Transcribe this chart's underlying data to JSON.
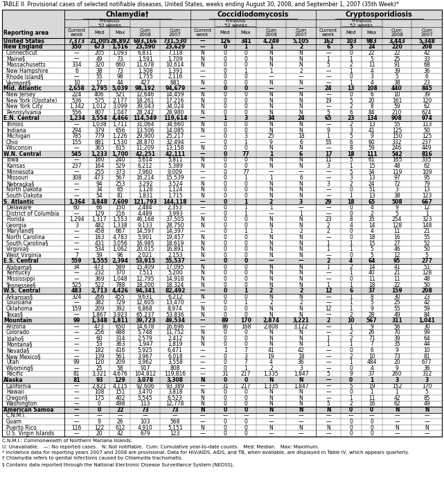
{
  "title": "TABLE II. Provisional cases of selected notifiable diseases, United States, weeks ending August 30, 2008, and September 1, 2007 (35th Week)*",
  "col_groups": [
    "Chlamydia†",
    "Coccidiodomycosis",
    "Cryptosporidiosis"
  ],
  "row_label": "Reporting area",
  "footnotes": [
    "C.N.M.I.: Commonwealth of Northern Mariana Islands.",
    "U: Unavailable.   —: No reported cases.   N: Not notifiable.  Cum: Cumulative year-to-date counts.   Med: Median.   Max: Maximum.",
    "* Incidence data for reporting years 2007 and 2008 are provisional. Data for HIV/AIDS, AIDS, and TB, when available, are displayed in Table IV, which appears quarterly.",
    "† Chlamydia refers to genital infections caused by Chlamydia trachomatis.",
    "§ Contains data reported through the National Electronic Disease Surveillance System (NEDSS)."
  ],
  "rows": [
    [
      "United States",
      "7,373",
      "21,005",
      "28,892",
      "693,166",
      "731,530",
      "—",
      "126",
      "341",
      "4,249",
      "5,105",
      "162",
      "103",
      "983",
      "3,443",
      "5,348"
    ],
    [
      "New England",
      "350",
      "673",
      "1,516",
      "23,590",
      "23,629",
      "—",
      "0",
      "1",
      "1",
      "2",
      "6",
      "5",
      "24",
      "220",
      "208"
    ],
    [
      "Connecticut",
      "—",
      "205",
      "1,093",
      "6,831",
      "7,118",
      "N",
      "0",
      "0",
      "N",
      "N",
      "—",
      "0",
      "22",
      "22",
      "42"
    ],
    [
      "Maine§",
      "—",
      "49",
      "73",
      "1,591",
      "1,709",
      "N",
      "0",
      "0",
      "N",
      "N",
      "1",
      "1",
      "5",
      "25",
      "33"
    ],
    [
      "Massachusetts",
      "334",
      "320",
      "660",
      "11,678",
      "10,614",
      "N",
      "0",
      "0",
      "N",
      "N",
      "5",
      "2",
      "11",
      "91",
      "68"
    ],
    [
      "New Hampshire",
      "6",
      "38",
      "73",
      "1,308",
      "1,391",
      "—",
      "0",
      "1",
      "1",
      "2",
      "—",
      "1",
      "4",
      "39",
      "36"
    ],
    [
      "Rhode Island§",
      "—",
      "55",
      "98",
      "1,755",
      "2,116",
      "—",
      "0",
      "0",
      "—",
      "—",
      "—",
      "0",
      "3",
      "5",
      "6"
    ],
    [
      "Vermont§",
      "10",
      "17",
      "44",
      "427",
      "681",
      "N",
      "0",
      "0",
      "N",
      "N",
      "—",
      "1",
      "4",
      "38",
      "23"
    ],
    [
      "Mid. Atlantic",
      "2,658",
      "2,795",
      "5,039",
      "98,192",
      "94,679",
      "—",
      "0",
      "0",
      "—",
      "—",
      "24",
      "13",
      "108",
      "440",
      "845"
    ],
    [
      "New Jersey",
      "224",
      "406",
      "521",
      "12,646",
      "14,459",
      "N",
      "0",
      "0",
      "N",
      "N",
      "—",
      "0",
      "6",
      "10",
      "39"
    ],
    [
      "New York (Upstate)",
      "536",
      "575",
      "2,177",
      "18,261",
      "17,216",
      "N",
      "0",
      "0",
      "N",
      "N",
      "19",
      "5",
      "20",
      "161",
      "120"
    ],
    [
      "New York City",
      "1,342",
      "1,012",
      "3,099",
      "39,043",
      "34,024",
      "N",
      "0",
      "0",
      "N",
      "N",
      "—",
      "2",
      "8",
      "59",
      "62"
    ],
    [
      "Pennsylvania",
      "556",
      "807",
      "1,047",
      "28,242",
      "28,980",
      "N",
      "0",
      "0",
      "N",
      "N",
      "5",
      "6",
      "84",
      "210",
      "624"
    ],
    [
      "E.N. Central",
      "1,234",
      "3,554",
      "4,466",
      "114,549",
      "119,614",
      "—",
      "1",
      "3",
      "34",
      "24",
      "65",
      "23",
      "134",
      "908",
      "974"
    ],
    [
      "Illinois",
      "—",
      "1,038",
      "1,711",
      "31,064",
      "34,660",
      "N",
      "0",
      "0",
      "N",
      "N",
      "—",
      "2",
      "13",
      "55",
      "113"
    ],
    [
      "Indiana",
      "294",
      "379",
      "656",
      "13,506",
      "14,085",
      "N",
      "0",
      "0",
      "N",
      "N",
      "9",
      "3",
      "41",
      "125",
      "50"
    ],
    [
      "Michigan",
      "785",
      "779",
      "1,226",
      "29,900",
      "25,217",
      "—",
      "0",
      "3",
      "25",
      "18",
      "1",
      "5",
      "9",
      "150",
      "125"
    ],
    [
      "Ohio",
      "155",
      "881",
      "1,530",
      "28,870",
      "32,494",
      "—",
      "0",
      "1",
      "9",
      "6",
      "55",
      "6",
      "60",
      "332",
      "237"
    ],
    [
      "Wisconsin",
      "—",
      "365",
      "615",
      "11,209",
      "13,158",
      "N",
      "0",
      "0",
      "N",
      "N",
      "—",
      "8",
      "59",
      "246",
      "449"
    ],
    [
      "W.N. Central",
      "545",
      "1,233",
      "1,700",
      "42,251",
      "42,111",
      "—",
      "0",
      "77",
      "1",
      "6",
      "17",
      "18",
      "111",
      "542",
      "816"
    ],
    [
      "Iowa",
      "—",
      "160",
      "240",
      "5,614",
      "5,811",
      "N",
      "0",
      "0",
      "N",
      "N",
      "11",
      "5",
      "61",
      "165",
      "335"
    ],
    [
      "Kansas",
      "237",
      "164",
      "529",
      "6,212",
      "5,389",
      "N",
      "0",
      "0",
      "N",
      "N",
      "3",
      "1",
      "15",
      "48",
      "62"
    ],
    [
      "Minnesota",
      "—",
      "255",
      "373",
      "7,960",
      "9,009",
      "—",
      "0",
      "77",
      "—",
      "—",
      "—",
      "5",
      "34",
      "119",
      "109"
    ],
    [
      "Missouri",
      "308",
      "473",
      "567",
      "16,214",
      "15,539",
      "—",
      "0",
      "1",
      "1",
      "6",
      "—",
      "3",
      "13",
      "97",
      "95"
    ],
    [
      "Nebraska§",
      "—",
      "94",
      "253",
      "3,292",
      "3,524",
      "N",
      "0",
      "0",
      "N",
      "N",
      "3",
      "2",
      "24",
      "72",
      "79"
    ],
    [
      "North Dakota",
      "—",
      "34",
      "65",
      "1,128",
      "1,124",
      "N",
      "0",
      "0",
      "N",
      "N",
      "—",
      "0",
      "51",
      "3",
      "13"
    ],
    [
      "South Dakota",
      "—",
      "54",
      "81",
      "1,831",
      "1,715",
      "N",
      "0",
      "0",
      "N",
      "N",
      "—",
      "1",
      "13",
      "38",
      "123"
    ],
    [
      "S. Atlantic",
      "1,364",
      "3,848",
      "7,609",
      "121,793",
      "144,118",
      "—",
      "0",
      "1",
      "2",
      "3",
      "29",
      "18",
      "65",
      "508",
      "667"
    ],
    [
      "Delaware",
      "60",
      "66",
      "150",
      "2,484",
      "2,353",
      "—",
      "0",
      "1",
      "1",
      "—",
      "—",
      "0",
      "4",
      "9",
      "12"
    ],
    [
      "District of Columbia",
      "—",
      "129",
      "216",
      "4,489",
      "3,993",
      "—",
      "0",
      "1",
      "—",
      "1",
      "—",
      "0",
      "2",
      "5",
      "1"
    ],
    [
      "Florida",
      "1,294",
      "1,317",
      "1,553",
      "46,168",
      "37,505",
      "N",
      "0",
      "0",
      "N",
      "N",
      "23",
      "8",
      "35",
      "254",
      "323"
    ],
    [
      "Georgia",
      "3",
      "482",
      "1,338",
      "9,133",
      "28,750",
      "N",
      "0",
      "0",
      "N",
      "N",
      "2",
      "4",
      "14",
      "128",
      "148"
    ],
    [
      "Maryland§",
      "—",
      "458",
      "667",
      "14,597",
      "14,397",
      "—",
      "0",
      "1",
      "1",
      "2",
      "2",
      "0",
      "4",
      "11",
      "21"
    ],
    [
      "North Carolina",
      "—",
      "163",
      "4,783",
      "5,901",
      "19,457",
      "N",
      "0",
      "0",
      "N",
      "N",
      "—",
      "0",
      "18",
      "16",
      "55"
    ],
    [
      "South Carolina§",
      "—",
      "431",
      "3,056",
      "16,985",
      "18,619",
      "N",
      "0",
      "0",
      "N",
      "N",
      "1",
      "1",
      "15",
      "27",
      "52"
    ],
    [
      "Virginia§",
      "—",
      "534",
      "1,062",
      "20,015",
      "16,891",
      "N",
      "0",
      "0",
      "N",
      "N",
      "1",
      "1",
      "5",
      "46",
      "50"
    ],
    [
      "West Virginia",
      "7",
      "59",
      "96",
      "2,021",
      "2,153",
      "N",
      "0",
      "0",
      "N",
      "N",
      "—",
      "0",
      "5",
      "12",
      "5"
    ],
    [
      "E.S. Central",
      "559",
      "1,555",
      "2,394",
      "53,915",
      "55,537",
      "—",
      "0",
      "0",
      "—",
      "—",
      "2",
      "4",
      "64",
      "95",
      "277"
    ],
    [
      "Alabama§",
      "34",
      "473",
      "589",
      "15,409",
      "17,095",
      "N",
      "0",
      "0",
      "N",
      "N",
      "1",
      "2",
      "14",
      "41",
      "51"
    ],
    [
      "Kentucky",
      "—",
      "232",
      "370",
      "7,511",
      "5,200",
      "N",
      "0",
      "0",
      "N",
      "N",
      "—",
      "1",
      "40",
      "21",
      "128"
    ],
    [
      "Mississippi",
      "—",
      "369",
      "1,048",
      "12,795",
      "14,918",
      "N",
      "0",
      "0",
      "N",
      "N",
      "—",
      "0",
      "11",
      "11",
      "48"
    ],
    [
      "Tennessee§",
      "525",
      "522",
      "788",
      "18,200",
      "18,324",
      "N",
      "0",
      "0",
      "N",
      "N",
      "1",
      "1",
      "18",
      "22",
      "50"
    ],
    [
      "W.S. Central",
      "483",
      "2,713",
      "4,426",
      "94,341",
      "82,492",
      "—",
      "0",
      "1",
      "2",
      "2",
      "12",
      "6",
      "37",
      "159",
      "208"
    ],
    [
      "Arkansas§",
      "324",
      "266",
      "455",
      "9,631",
      "6,212",
      "N",
      "0",
      "0",
      "N",
      "N",
      "—",
      "1",
      "8",
      "30",
      "23"
    ],
    [
      "Louisiana",
      "—",
      "382",
      "729",
      "12,605",
      "13,470",
      "—",
      "0",
      "1",
      "2",
      "2",
      "—",
      "1",
      "5",
      "25",
      "42"
    ],
    [
      "Oklahoma",
      "159",
      "209",
      "392",
      "6,868",
      "8,974",
      "N",
      "0",
      "0",
      "N",
      "N",
      "12",
      "1",
      "9",
      "55",
      "59"
    ],
    [
      "Texas§",
      "—",
      "1,867",
      "3,923",
      "65,237",
      "53,836",
      "N",
      "0",
      "0",
      "N",
      "N",
      "—",
      "2",
      "28",
      "49",
      "84"
    ],
    [
      "Mountain",
      "99",
      "1,348",
      "1,811",
      "39,723",
      "49,534",
      "—",
      "89",
      "170",
      "2,874",
      "3,221",
      "2",
      "10",
      "567",
      "311",
      "1,041"
    ],
    [
      "Arizona",
      "—",
      "473",
      "650",
      "14,678",
      "16,696",
      "—",
      "86",
      "168",
      "2,808",
      "3,122",
      "—",
      "1",
      "9",
      "56",
      "30"
    ],
    [
      "Colorado",
      "—",
      "256",
      "488",
      "5,748",
      "11,752",
      "N",
      "0",
      "0",
      "N",
      "N",
      "—",
      "2",
      "26",
      "70",
      "99"
    ],
    [
      "Idaho§",
      "—",
      "60",
      "314",
      "2,579",
      "2,412",
      "N",
      "0",
      "0",
      "N",
      "N",
      "1",
      "2",
      "71",
      "39",
      "64"
    ],
    [
      "Montana§",
      "—",
      "53",
      "363",
      "1,947",
      "1,819",
      "N",
      "0",
      "0",
      "N",
      "N",
      "1",
      "1",
      "7",
      "35",
      "44"
    ],
    [
      "Nevada§",
      "—",
      "182",
      "416",
      "5,925",
      "6,471",
      "—",
      "1",
      "7",
      "41",
      "42",
      "—",
      "0",
      "6",
      "9",
      "10"
    ],
    [
      "New Mexico§",
      "—",
      "139",
      "561",
      "3,967",
      "6,018",
      "—",
      "0",
      "3",
      "19",
      "18",
      "—",
      "2",
      "10",
      "73",
      "81"
    ],
    [
      "Utah",
      "99",
      "120",
      "209",
      "3,962",
      "3,558",
      "—",
      "0",
      "7",
      "4",
      "36",
      "—",
      "1",
      "484",
      "20",
      "677"
    ],
    [
      "Wyoming§",
      "—",
      "25",
      "58",
      "917",
      "808",
      "—",
      "0",
      "1",
      "2",
      "3",
      "—",
      "0",
      "4",
      "9",
      "36"
    ],
    [
      "Pacific",
      "81",
      "3,321",
      "4,676",
      "104,812",
      "119,816",
      "—",
      "31",
      "217",
      "1,335",
      "1,847",
      "5",
      "9",
      "37",
      "260",
      "312"
    ],
    [
      "Alaska",
      "81",
      "93",
      "129",
      "3,078",
      "3,308",
      "N",
      "0",
      "0",
      "N",
      "N",
      "—",
      "0",
      "1",
      "3",
      "3"
    ],
    [
      "California",
      "—",
      "2,821",
      "4,115",
      "92,606",
      "93,389",
      "—",
      "31",
      "217",
      "1,335",
      "1,847",
      "—",
      "5",
      "19",
      "152",
      "170"
    ],
    [
      "Hawaii",
      "—",
      "108",
      "151",
      "3,470",
      "3,818",
      "N",
      "0",
      "0",
      "N",
      "N",
      "—",
      "0",
      "1",
      "1",
      "5"
    ],
    [
      "Oregon§",
      "—",
      "175",
      "402",
      "5,545",
      "6,523",
      "N",
      "0",
      "0",
      "N",
      "N",
      "—",
      "1",
      "11",
      "42",
      "85"
    ],
    [
      "Washington",
      "—",
      "0",
      "498",
      "113",
      "12,778",
      "N",
      "0",
      "0",
      "N",
      "N",
      "5",
      "2",
      "16",
      "62",
      "49"
    ],
    [
      "American Samoa",
      "—",
      "0",
      "22",
      "73",
      "73",
      "N",
      "0",
      "0",
      "N",
      "N",
      "N",
      "0",
      "0",
      "N",
      "N"
    ],
    [
      "C.N.M.I.",
      "—",
      "—",
      "—",
      "—",
      "—",
      "—",
      "—",
      "—",
      "—",
      "—",
      "—",
      "—",
      "—",
      "—",
      "—"
    ],
    [
      "Guam",
      "—",
      "9",
      "26",
      "103",
      "568",
      "—",
      "0",
      "0",
      "—",
      "—",
      "—",
      "0",
      "0",
      "—",
      "—"
    ],
    [
      "Puerto Rico",
      "116",
      "122",
      "612",
      "4,910",
      "5,151",
      "N",
      "0",
      "0",
      "N",
      "N",
      "N",
      "0",
      "0",
      "N",
      "N"
    ],
    [
      "U.S. Virgin Islands",
      "—",
      "20",
      "42",
      "679",
      "123",
      "—",
      "0",
      "0",
      "—",
      "—",
      "—",
      "0",
      "0",
      "—",
      "—"
    ]
  ],
  "bold_rows": [
    0,
    1,
    8,
    13,
    19,
    27,
    37,
    42,
    47,
    57,
    62
  ],
  "separator_before": [
    62
  ]
}
